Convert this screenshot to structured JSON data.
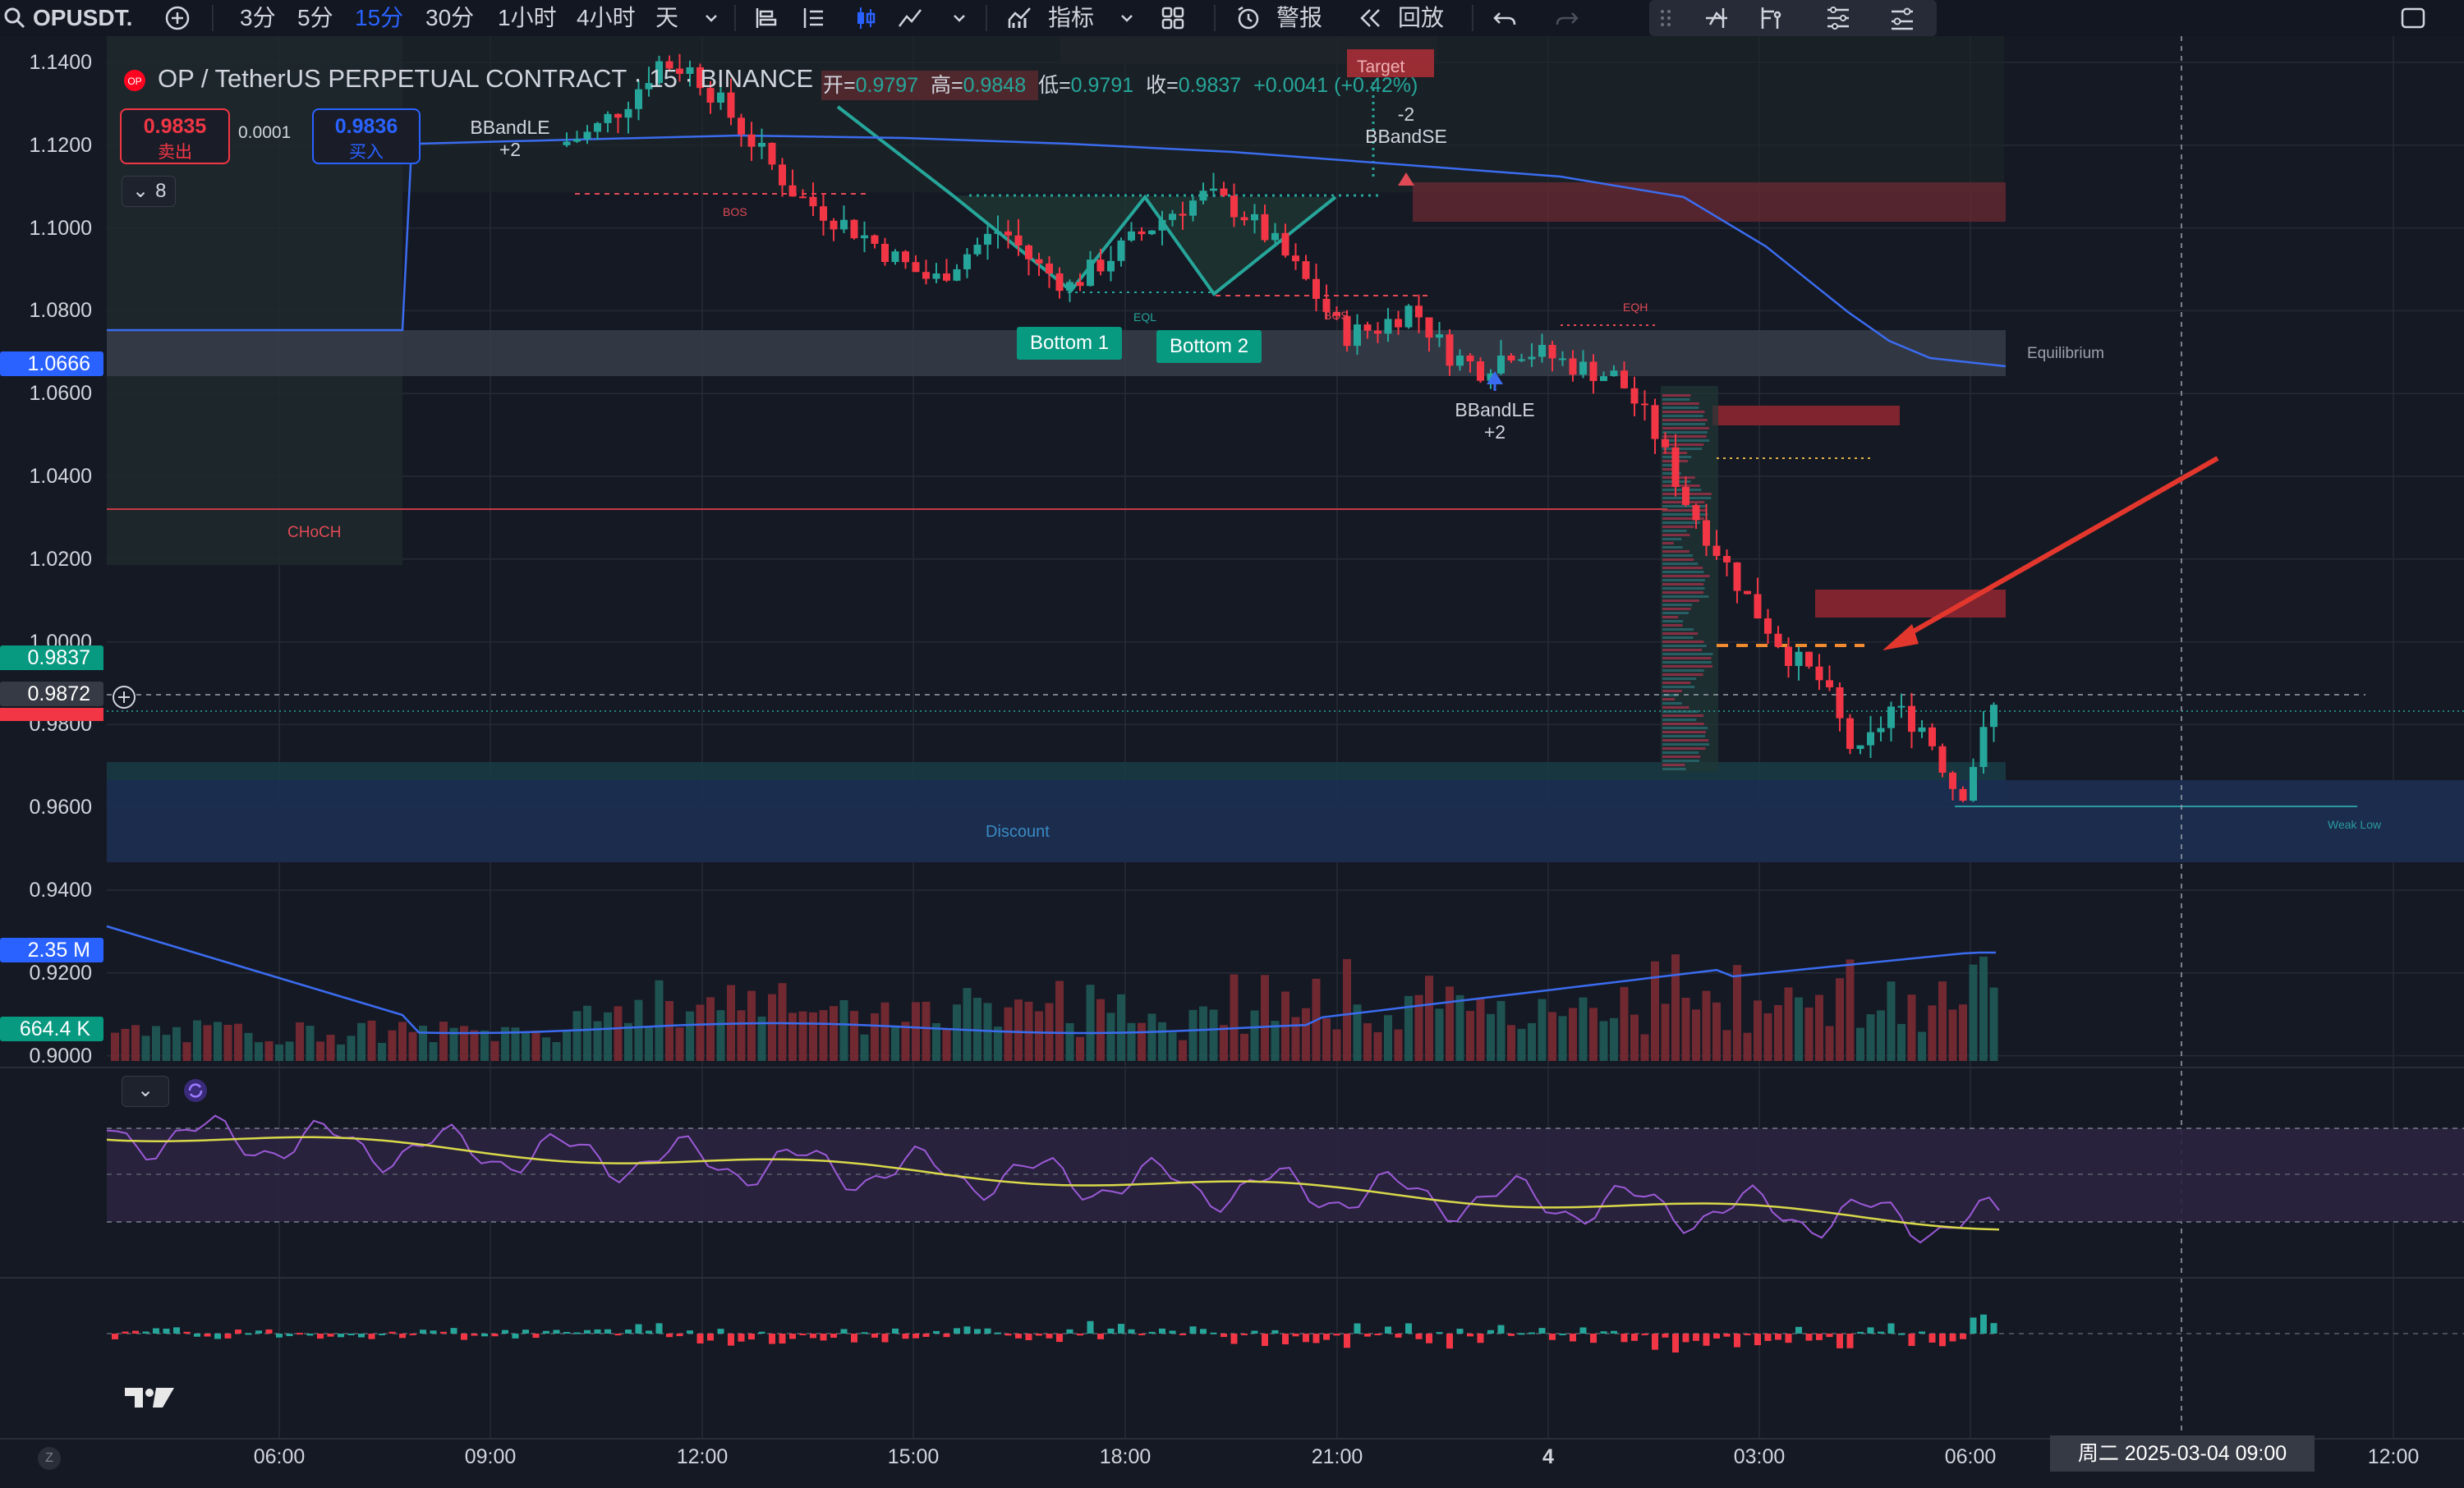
{
  "toolbar": {
    "symbol": "OPUSDT.",
    "intervals": [
      "3分",
      "5分",
      "15分",
      "30分",
      "1小时",
      "4小时",
      "天"
    ],
    "active_interval": "15分",
    "indicators_label": "指标",
    "alert_label": "警报",
    "replay_label": "回放"
  },
  "legend": {
    "title": "OP / TetherUS PERPETUAL CONTRACT · 15 · BINANCE",
    "open_label": "开=",
    "open": "0.9797",
    "high_label": "高=",
    "high": "0.9848",
    "low_label": "低=",
    "low": "0.9791",
    "close_label": "收=",
    "close": "0.9837",
    "change": "+0.0041 (+0.42%)",
    "sell_price": "0.9835",
    "sell_label": "卖出",
    "spread": "0.0001",
    "buy_price": "0.9836",
    "buy_label": "买入",
    "collapse_count": "8"
  },
  "price_axis": {
    "ticks": [
      "1.1400",
      "1.1200",
      "1.1000",
      "1.0800",
      "1.0600",
      "1.0400",
      "1.0200",
      "1.0000",
      "0.9800",
      "0.9600",
      "0.9400",
      "0.9200",
      "0.9000"
    ],
    "badge_blue": "1.0666",
    "badge_green": "0.9837",
    "badge_cursor": "0.9872",
    "volume_ma": "2.35 M",
    "volume": "664.4 K"
  },
  "time_axis": {
    "ticks": [
      "06:00",
      "09:00",
      "12:00",
      "15:00",
      "18:00",
      "21:00",
      "4",
      "03:00",
      "06:00",
      "12:00"
    ],
    "cursor_label": "周二 2025-03-04  09:00"
  },
  "annotations": {
    "bband_le_1": "BBandLE",
    "bband_le_1_n": "+2",
    "bband_se": "BBandSE",
    "bband_se_n": "-2",
    "bband_le_2": "BBandLE",
    "bband_le_2_n": "+2",
    "bottom1": "Bottom 1",
    "bottom2": "Bottom 2",
    "target": "Target",
    "bos1": "BOS",
    "bos2": "BOS",
    "eql": "EQL",
    "eqh": "EQH",
    "choch": "CHoCH",
    "equilibrium": "Equilibrium",
    "discount": "Discount",
    "weak_low": "Weak Low"
  },
  "colors": {
    "bull": "#26a69a",
    "bear": "#f23645",
    "accent": "#2962ff",
    "bg": "#151924",
    "grid": "#262a35"
  },
  "chart_data": {
    "type": "candlestick",
    "symbol": "OPUSDT",
    "interval": "15",
    "ylim": [
      0.9,
      1.14
    ],
    "close_path": [
      1.12,
      1.123,
      1.13,
      1.14,
      1.138,
      1.128,
      1.118,
      1.108,
      1.103,
      1.098,
      1.092,
      1.087,
      1.094,
      1.1,
      1.091,
      1.086,
      1.092,
      1.098,
      1.104,
      1.108,
      1.104,
      1.096,
      1.086,
      1.074,
      1.076,
      1.081,
      1.07,
      1.066,
      1.071,
      1.069,
      1.066,
      1.064,
      1.052,
      1.034,
      1.021,
      1.008,
      0.997,
      0.99,
      0.971,
      0.984,
      0.979,
      0.962,
      0.984
    ]
  }
}
